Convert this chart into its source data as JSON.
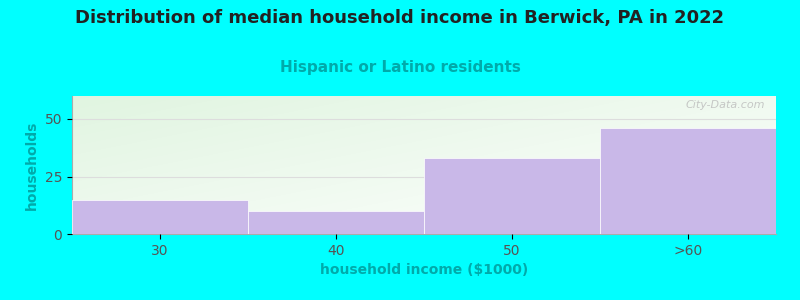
{
  "title": "Distribution of median household income in Berwick, PA in 2022",
  "subtitle": "Hispanic or Latino residents",
  "xlabel": "household income ($1000)",
  "ylabel": "households",
  "categories": [
    "30",
    "40",
    "50",
    ">60"
  ],
  "values": [
    15,
    10,
    33,
    46
  ],
  "bar_color": "#C9B8E8",
  "bar_edgecolor": "#C9B8E8",
  "background_color": "#00FFFF",
  "ylim": [
    0,
    60
  ],
  "yticks": [
    0,
    25,
    50
  ],
  "title_fontsize": 13,
  "subtitle_fontsize": 11,
  "subtitle_color": "#00AAAA",
  "axis_label_color": "#00AAAA",
  "tick_color": "#555555",
  "watermark": "City-Data.com",
  "grid_color": "#dddddd"
}
